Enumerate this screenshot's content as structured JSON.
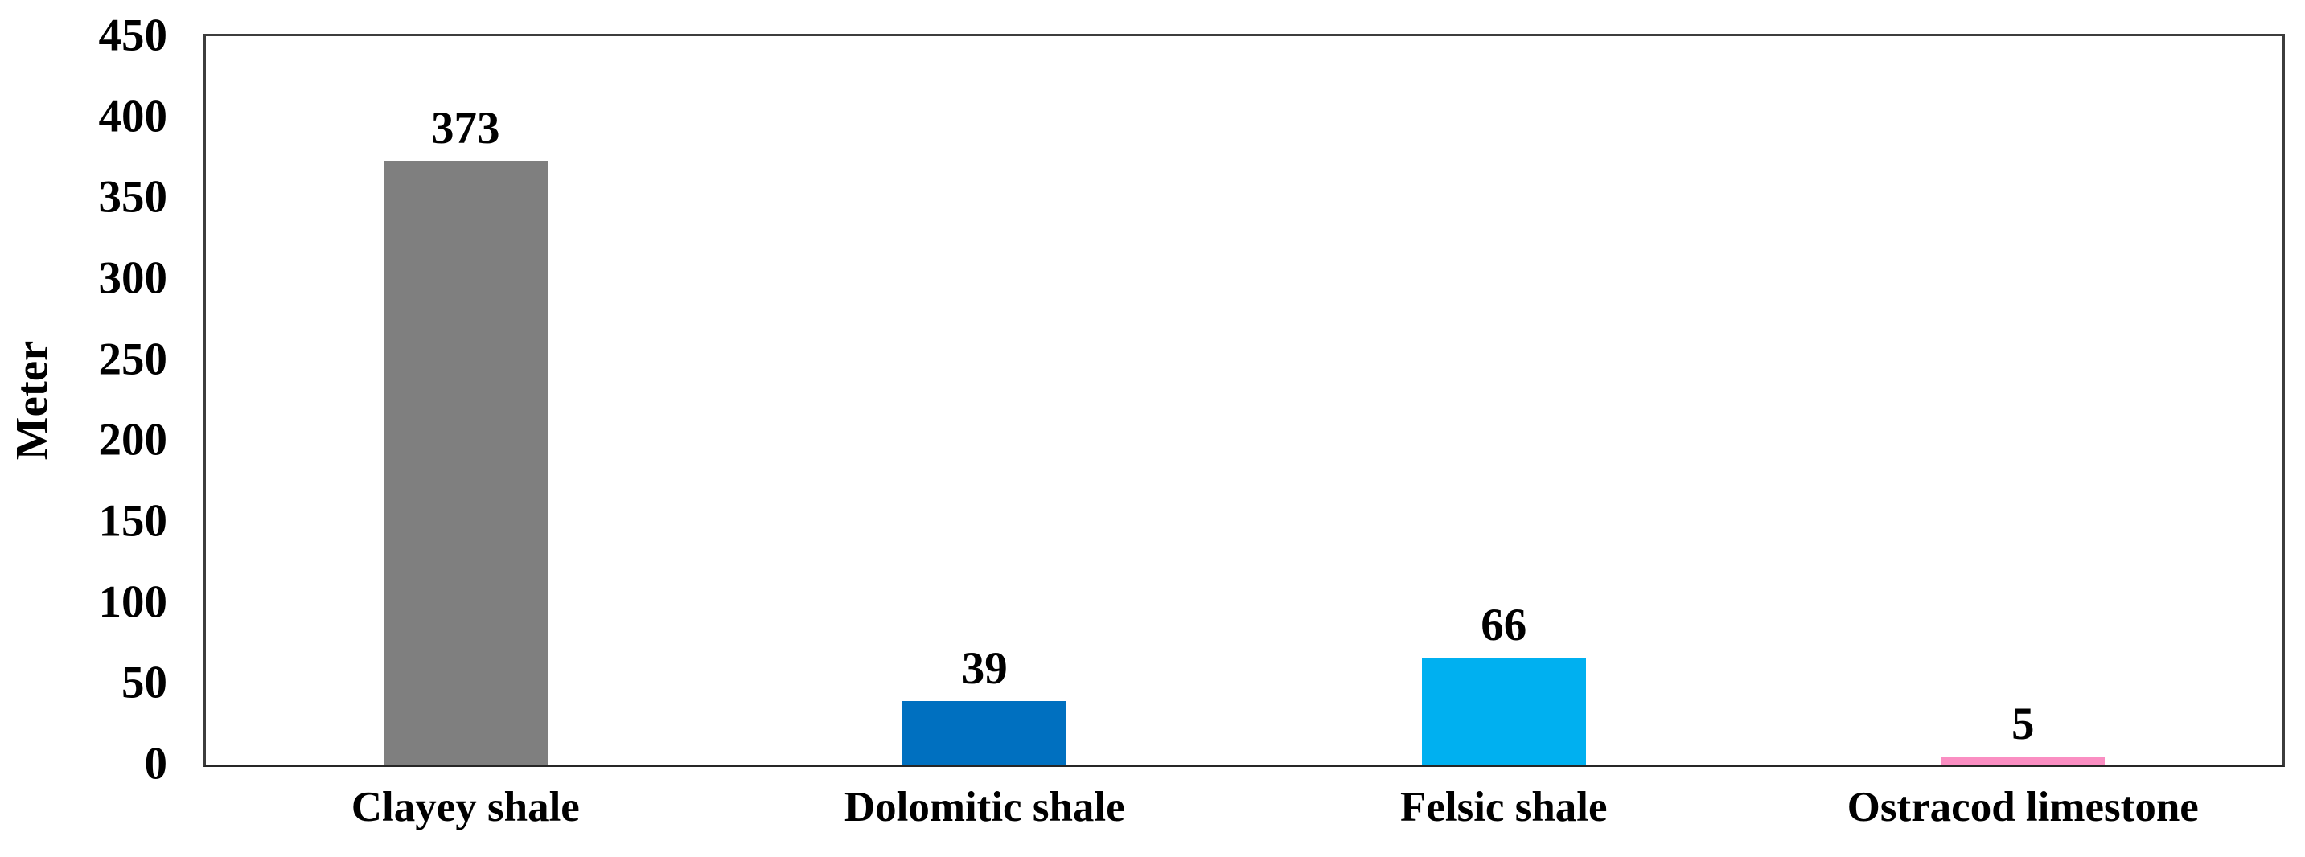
{
  "chart_data": {
    "type": "bar",
    "title": "",
    "xlabel": "",
    "ylabel": "Meter",
    "categories": [
      "Clayey shale",
      "Dolomitic shale",
      "Felsic shale",
      "Ostracod limestone"
    ],
    "values": [
      373,
      39,
      66,
      5
    ],
    "data_labels": [
      "373",
      "39",
      "66",
      "5"
    ],
    "bar_colors": [
      "#7F7F7F",
      "#0070C0",
      "#00B0F0",
      "#FA8EC2"
    ],
    "ylim": [
      0,
      450
    ],
    "yticks": [
      0,
      50,
      100,
      150,
      200,
      250,
      300,
      350,
      400,
      450
    ],
    "ytick_labels": [
      "0",
      "50",
      "100",
      "150",
      "200",
      "250",
      "300",
      "350",
      "400",
      "450"
    ],
    "grid": false,
    "legend_position": "none",
    "border_color": "#3d3d3d",
    "text_color": "#000000",
    "background_color": "#ffffff"
  }
}
